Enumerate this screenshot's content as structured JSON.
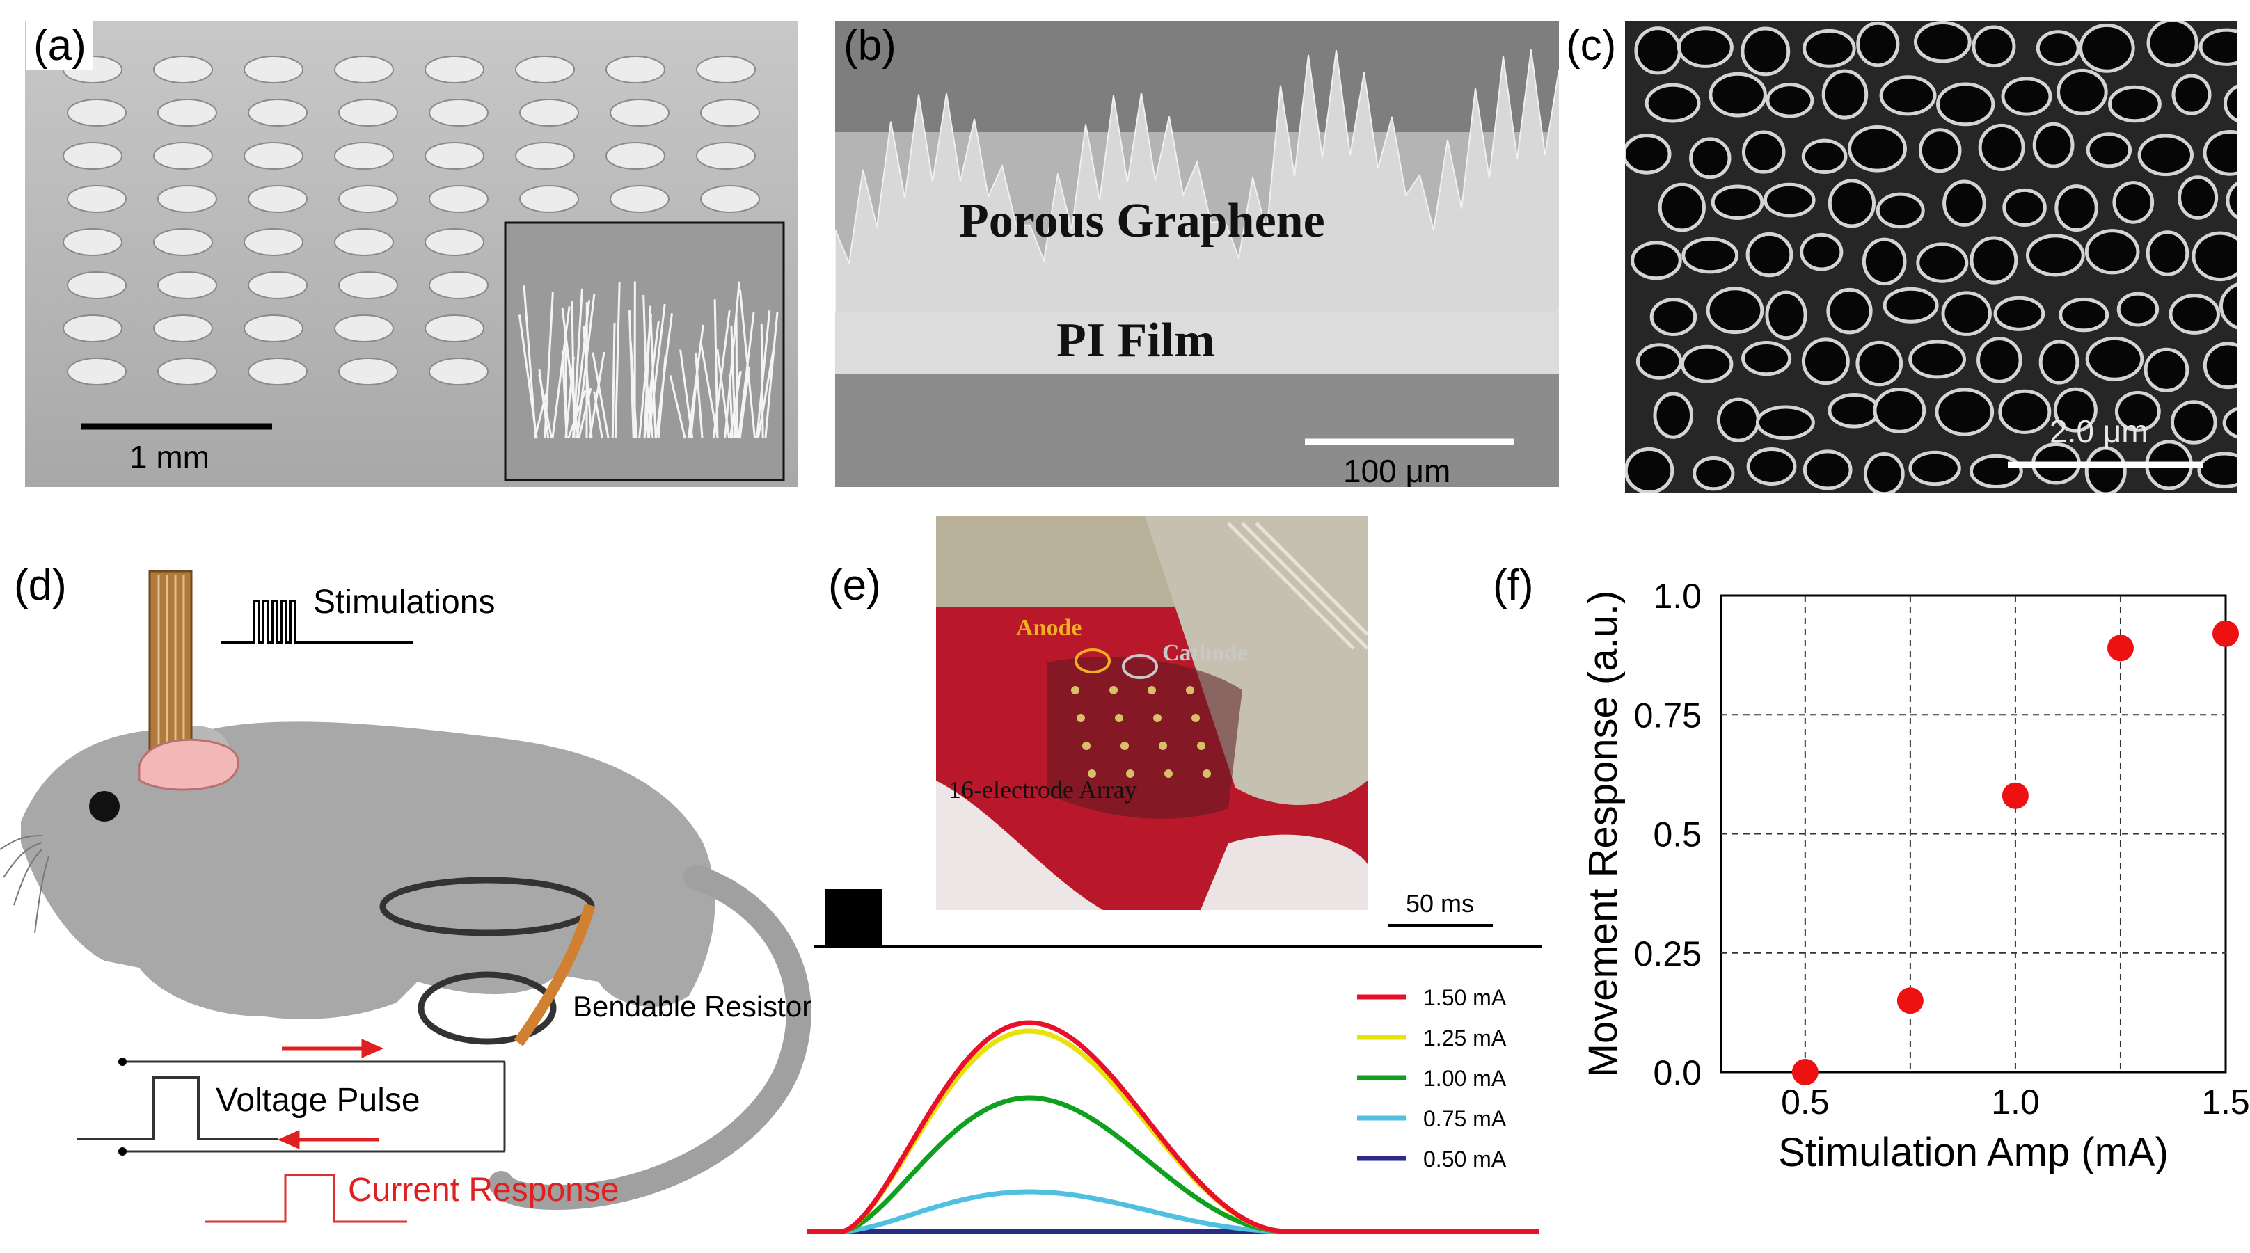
{
  "panels": {
    "a": {
      "label": "(a)",
      "scale_label": "1 mm"
    },
    "b": {
      "label": "(b)",
      "layer_top": "Porous Graphene",
      "layer_bottom": "PI Film",
      "scale_label": "100  μm"
    },
    "c": {
      "label": "(c)",
      "scale_label": "2.0 μm"
    },
    "d": {
      "label": "(d)",
      "stimulations": "Stimulations",
      "bendable_resistor": "Bendable Resistor",
      "voltage_pulse": "Voltage Pulse",
      "current_response": "Current Response"
    },
    "e": {
      "label": "(e)",
      "anode": "Anode",
      "cathode": "Cathode",
      "array": "16-electrode Array",
      "time_scale": "50 ms",
      "legend": [
        {
          "name": "1.50 mA",
          "color": "#e8102a",
          "peak": 1.0
        },
        {
          "name": "1.25 mA",
          "color": "#e6e20a",
          "peak": 0.96
        },
        {
          "name": "1.00 mA",
          "color": "#10a020",
          "peak": 0.64
        },
        {
          "name": "0.75 mA",
          "color": "#50c0e0",
          "peak": 0.19
        },
        {
          "name": "0.50 mA",
          "color": "#2a2a8a",
          "peak": 0.0
        }
      ]
    },
    "f": {
      "label": "(f)"
    }
  },
  "chart_data": {
    "type": "scatter",
    "xlabel": "Stimulation Amp (mA)",
    "ylabel": "Movement Response (a.u.)",
    "xlim": [
      0.3,
      1.5
    ],
    "ylim": [
      0.0,
      1.0
    ],
    "x_ticks": [
      0.5,
      1.0,
      1.5
    ],
    "x_tick_labels": [
      "0.5",
      "1.0",
      "1.5"
    ],
    "y_ticks": [
      0.0,
      0.25,
      0.5,
      0.75,
      1.0
    ],
    "y_tick_labels": [
      "0.0",
      "0.25",
      "0.5",
      "0.75",
      "1.0"
    ],
    "grid": true,
    "point_color": "#ee1111",
    "series": [
      {
        "x": [
          0.5,
          0.75,
          1.0,
          1.25,
          1.5
        ],
        "y": [
          0.0,
          0.15,
          0.58,
          0.89,
          0.92
        ]
      }
    ]
  }
}
